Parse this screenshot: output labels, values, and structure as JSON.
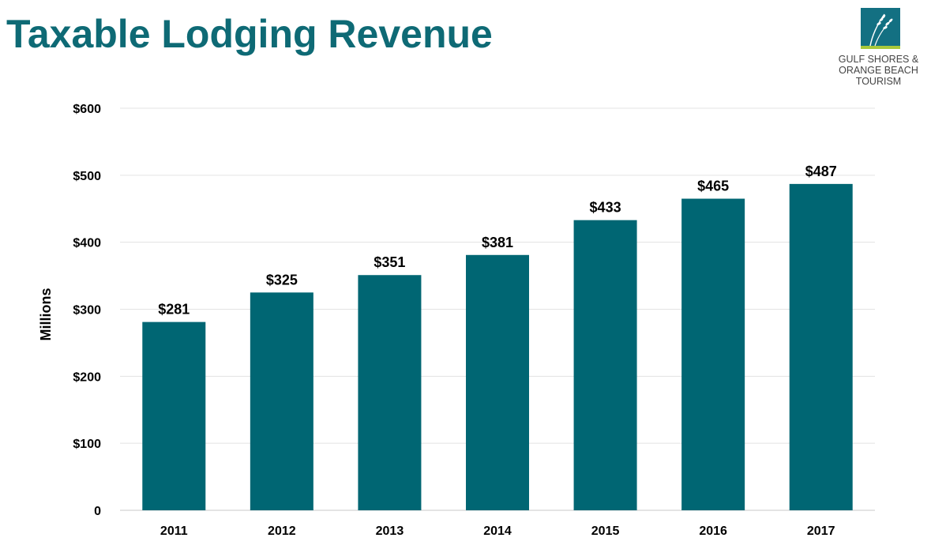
{
  "header": {
    "title": "Taxable Lodging Revenue"
  },
  "logo": {
    "lines": [
      "GULF SHORES &",
      "ORANGE BEACH",
      "TOURISM"
    ],
    "icon": "sea-oats-icon",
    "colors": {
      "square": "#137082",
      "accent": "#a7c83b"
    }
  },
  "chart_data": {
    "type": "bar",
    "title": "",
    "xlabel": "",
    "ylabel": "Millions",
    "categories": [
      "2011",
      "2012",
      "2013",
      "2014",
      "2015",
      "2016",
      "2017"
    ],
    "values": [
      281,
      325,
      351,
      381,
      433,
      465,
      487
    ],
    "data_labels": [
      "$281",
      "$325",
      "$351",
      "$381",
      "$433",
      "$465",
      "$487"
    ],
    "ylim": [
      0,
      600
    ],
    "yticks": [
      0,
      100,
      200,
      300,
      400,
      500,
      600
    ],
    "ytick_labels": [
      "0",
      "$100",
      "$200",
      "$300",
      "$400",
      "$500",
      "$600"
    ],
    "grid": true,
    "legend": "none",
    "bar_color": "#006673",
    "grid_color": "#e3e3e3"
  }
}
